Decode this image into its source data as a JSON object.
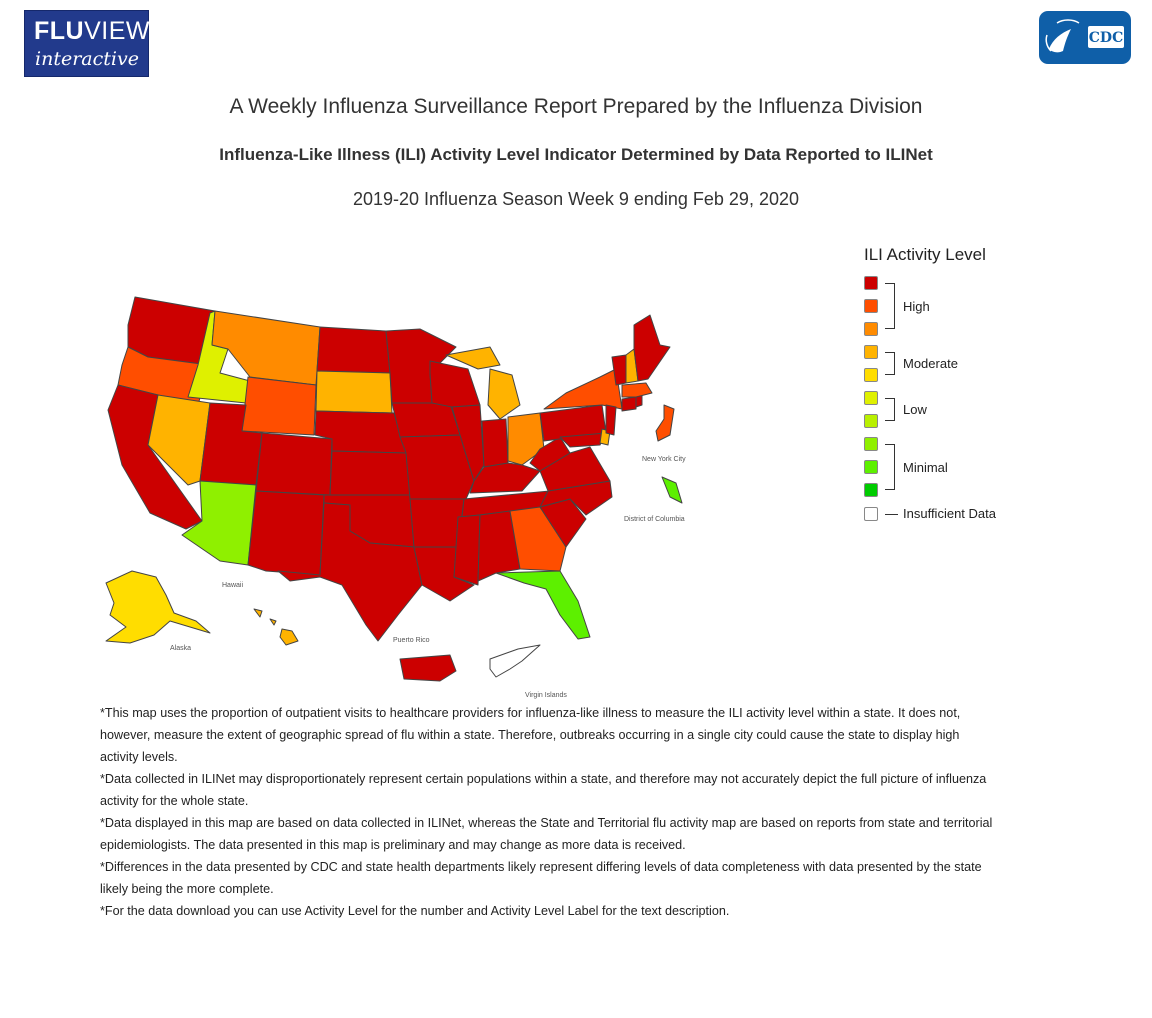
{
  "header": {
    "logo_text_bold": "FLU",
    "logo_text_light": "VIEW",
    "logo_subtext": "interactive",
    "cdc_logo_text": "CDC"
  },
  "titles": {
    "main": "A Weekly Influenza Surveillance Report Prepared by the Influenza Division",
    "subtitle": "Influenza-Like Illness (ILI) Activity Level Indicator Determined by Data Reported to ILINet",
    "season": "2019-20 Influenza Season Week 9 ending Feb 29, 2020"
  },
  "map_labels": {
    "new_york_city": "New York City",
    "district_of_columbia": "District of Columbia",
    "hawaii": "Hawaii",
    "alaska": "Alaska",
    "puerto_rico": "Puerto Rico",
    "virgin_islands": "Virgin Islands"
  },
  "legend": {
    "title": "ILI Activity Level",
    "colors": [
      "#cc0000",
      "#ff4e00",
      "#ff8b00",
      "#ffb300",
      "#ffdd00",
      "#dff000",
      "#b9f000",
      "#8ff000",
      "#5df000",
      "#00cc00",
      "#ffffff"
    ],
    "groups": {
      "high": "High",
      "moderate": "Moderate",
      "low": "Low",
      "minimal": "Minimal",
      "insufficient": "Insufficient Data"
    }
  },
  "notes": [
    "*This map uses the proportion of outpatient visits to healthcare providers for influenza-like illness to measure the ILI activity level within a state. It does not, however, measure the extent of geographic spread of flu within a state. Therefore, outbreaks occurring in a single city could cause the state to display high activity levels.",
    "*Data collected in ILINet may disproportionately represent certain populations within a state, and therefore may not accurately depict the full picture of influenza activity for the whole state.",
    "*Data displayed in this map are based on data collected in ILINet, whereas the State and Territorial flu activity map are based on reports from state and territorial epidemiologists. The data presented in this map is preliminary and may change as more data is received.",
    "*Differences in the data presented by CDC and state health departments likely represent differing levels of data completeness with data presented by the state likely being the more complete.",
    "*For the data download you can use Activity Level for the number and Activity Level Label for the text description."
  ]
}
